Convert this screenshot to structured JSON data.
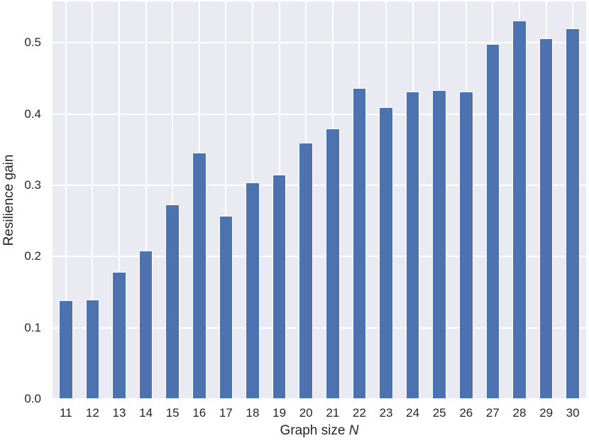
{
  "chart_data": {
    "type": "bar",
    "title": "",
    "xlabel": {
      "text": "Graph size ",
      "italic": "N"
    },
    "ylabel": "Resilience gain",
    "categories": [
      "11",
      "12",
      "13",
      "14",
      "15",
      "16",
      "17",
      "18",
      "19",
      "20",
      "21",
      "22",
      "23",
      "24",
      "25",
      "26",
      "27",
      "28",
      "29",
      "30"
    ],
    "values": [
      0.139,
      0.14,
      0.178,
      0.208,
      0.273,
      0.346,
      0.257,
      0.304,
      0.315,
      0.36,
      0.38,
      0.436,
      0.41,
      0.431,
      0.433,
      0.431,
      0.498,
      0.531,
      0.506,
      0.52
    ],
    "yticks": [
      0.0,
      0.1,
      0.2,
      0.3,
      0.4,
      0.5
    ],
    "ytick_labels": [
      "0.0",
      "0.1",
      "0.2",
      "0.3",
      "0.4",
      "0.5"
    ],
    "ylim": [
      0,
      0.558
    ],
    "grid": true,
    "legend": "none",
    "colors": {
      "bar": "#4c72b0",
      "bar_edge": "#ffffff",
      "plot_bg": "#eaeaf2",
      "grid": "#ffffff",
      "text": "#262626",
      "figure_bg": "#ffffff"
    }
  }
}
